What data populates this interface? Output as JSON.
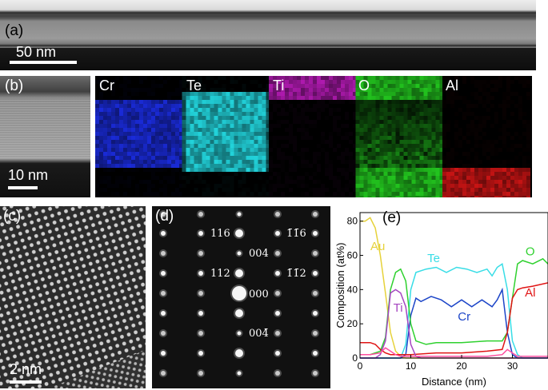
{
  "panels": {
    "a": {
      "label": "(a)",
      "scalebar": "50 nm"
    },
    "b": {
      "label": "(b)",
      "scalebar": "10 nm"
    },
    "c": {
      "label": "(c)",
      "scalebar": "2 nm"
    },
    "d": {
      "label": "(d)"
    },
    "e": {
      "label": "(e)"
    }
  },
  "eds_maps": [
    {
      "element": "Cr",
      "color": "#1a2bd9"
    },
    {
      "element": "Te",
      "color": "#22d4dc"
    },
    {
      "element": "Ti",
      "color": "#b01ab0"
    },
    {
      "element": "O",
      "color": "#22c41e"
    },
    {
      "element": "Al",
      "color": "#c81414"
    }
  ],
  "diffraction_spots": [
    {
      "label": "116"
    },
    {
      "label": "004"
    },
    {
      "label": "112"
    },
    {
      "label": "000"
    },
    {
      "label": "004̄"
    },
    {
      "label": "1̄1̄6"
    },
    {
      "label": "1̄1̄2"
    }
  ],
  "chart_data": {
    "type": "line",
    "title": "",
    "xlabel": "Distance (nm)",
    "ylabel": "Composition (at%)",
    "xlim": [
      0,
      37
    ],
    "ylim": [
      0,
      85
    ],
    "xticks": [
      0,
      10,
      20,
      30
    ],
    "yticks": [
      0,
      20,
      40,
      60,
      80
    ],
    "series": [
      {
        "name": "Au",
        "color": "#e6d23a",
        "x": [
          0,
          1,
          2,
          3,
          4,
          5,
          6,
          7,
          8,
          9,
          10,
          12,
          15,
          20,
          25,
          30,
          35,
          37
        ],
        "y": [
          80,
          80,
          82,
          76,
          60,
          38,
          15,
          4,
          1,
          0,
          0,
          0,
          0,
          0,
          0,
          0,
          0,
          0
        ]
      },
      {
        "name": "Te",
        "color": "#38dde6",
        "x": [
          0,
          5,
          8,
          9,
          10,
          11,
          13,
          15,
          17,
          19,
          21,
          23,
          25,
          26,
          27,
          28,
          29,
          30,
          31,
          32,
          37
        ],
        "y": [
          0,
          0,
          0,
          8,
          40,
          50,
          52,
          53,
          50,
          53,
          52,
          50,
          52,
          48,
          53,
          55,
          40,
          10,
          2,
          0,
          0
        ]
      },
      {
        "name": "Cr",
        "color": "#1c45c8",
        "x": [
          0,
          8,
          9,
          10,
          11,
          12,
          14,
          16,
          18,
          20,
          22,
          24,
          26,
          27,
          28,
          29,
          30,
          31,
          37
        ],
        "y": [
          0,
          0,
          2,
          25,
          35,
          33,
          36,
          34,
          30,
          34,
          30,
          34,
          30,
          34,
          40,
          15,
          2,
          0,
          0
        ]
      },
      {
        "name": "O",
        "color": "#2fd12f",
        "x": [
          0,
          2,
          4,
          5,
          6,
          7,
          8,
          9,
          10,
          11,
          13,
          15,
          20,
          25,
          28,
          29,
          30,
          31,
          32,
          34,
          36,
          37
        ],
        "y": [
          2,
          2,
          4,
          12,
          40,
          50,
          52,
          45,
          20,
          10,
          8,
          9,
          9,
          10,
          10,
          15,
          35,
          55,
          57,
          55,
          58,
          55
        ]
      },
      {
        "name": "Al",
        "color": "#e01414",
        "x": [
          0,
          2,
          3,
          4,
          5,
          6,
          7,
          8,
          10,
          15,
          20,
          25,
          28,
          29,
          30,
          31,
          32,
          34,
          37
        ],
        "y": [
          9,
          9,
          8,
          5,
          3,
          2,
          2,
          2,
          2,
          3,
          3,
          4,
          5,
          15,
          35,
          40,
          41,
          42,
          44
        ]
      },
      {
        "name": "Ti",
        "color": "#a545c0",
        "x": [
          0,
          3,
          4,
          5,
          6,
          7,
          8,
          9,
          10,
          11,
          12,
          15,
          20,
          25,
          30,
          37
        ],
        "y": [
          0,
          0,
          2,
          10,
          38,
          40,
          38,
          30,
          8,
          1,
          0,
          0,
          0,
          0,
          0,
          0
        ]
      },
      {
        "name": "",
        "color": "#ff4fa0",
        "x": [
          0,
          2,
          4,
          5,
          6,
          7,
          8,
          10,
          12,
          15,
          20,
          25,
          28,
          29,
          30,
          31,
          37
        ],
        "y": [
          2,
          2,
          3,
          6,
          4,
          2,
          1,
          1,
          1,
          1,
          1,
          1,
          2,
          5,
          3,
          1,
          1
        ]
      }
    ]
  }
}
